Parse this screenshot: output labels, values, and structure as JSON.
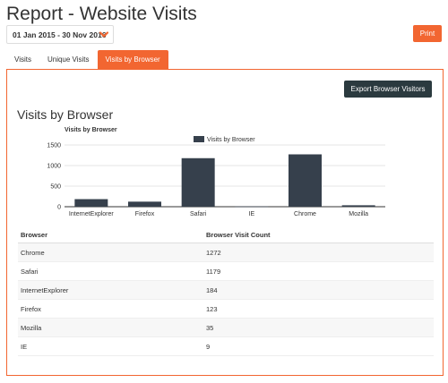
{
  "page": {
    "title": "Report - Website Visits"
  },
  "date_range": {
    "value": "01 Jan 2015 - 30 Nov 2016"
  },
  "toolbar": {
    "print_label": "Print"
  },
  "tabs": [
    {
      "label": "Visits"
    },
    {
      "label": "Unique Visits"
    },
    {
      "label": "Visits by Browser"
    }
  ],
  "panel": {
    "export_label": "Export Browser Visitors",
    "title": "Visits by Browser"
  },
  "chart_data": {
    "type": "bar",
    "title": "Visits by Browser",
    "categories": [
      "InternetExplorer",
      "Firefox",
      "Safari",
      "IE",
      "Chrome",
      "Mozilla"
    ],
    "series": [
      {
        "name": "Visits by Browser",
        "values": [
          184,
          123,
          1179,
          9,
          1272,
          35
        ]
      }
    ],
    "ylim": [
      0,
      1500
    ],
    "yticks": [
      "0",
      "500",
      "1000",
      "1500"
    ],
    "grid": true,
    "legend": "top-center",
    "color": "#36404c"
  },
  "table": {
    "headers": [
      "Browser",
      "Browser Visit Count"
    ],
    "rows": [
      [
        "Chrome",
        "1272"
      ],
      [
        "Safari",
        "1179"
      ],
      [
        "InternetExplorer",
        "184"
      ],
      [
        "Firefox",
        "123"
      ],
      [
        "Mozilla",
        "35"
      ],
      [
        "IE",
        "9"
      ]
    ]
  }
}
